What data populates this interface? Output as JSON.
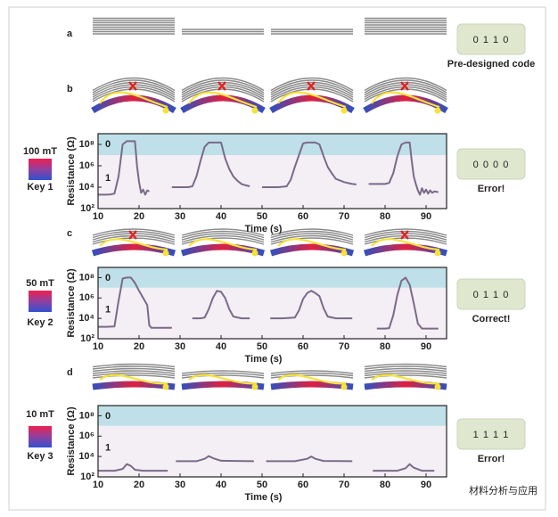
{
  "panel_labels": [
    "a",
    "b",
    "c",
    "d"
  ],
  "keys": [
    {
      "field": "100 mT",
      "name": "Key 1"
    },
    {
      "field": "50 mT",
      "name": "Key 2"
    },
    {
      "field": "10 mT",
      "name": "Key 3"
    }
  ],
  "codes": [
    {
      "code": "0 1 1 0",
      "caption": "Pre-designed code",
      "color": "#8a8a8a",
      "caption_color": "#222222"
    },
    {
      "code": "0 0 0 0",
      "caption": "Error!",
      "color": "#8a8a8a",
      "caption_color": "#222222"
    },
    {
      "code": "0 1 1 0",
      "caption": "Correct!",
      "color": "#e03030",
      "caption_color": "#e03030"
    },
    {
      "code": "1 1 1 1",
      "caption": "Error!",
      "color": "#8a8a8a",
      "caption_color": "#222222"
    }
  ],
  "watermark": "材料分析与应用",
  "chart_data": [
    {
      "type": "line",
      "xlabel": "Time (s)",
      "ylabel": "Resistance (Ω)",
      "log_y": true,
      "color": "#7a6a8a",
      "state_labels": [
        "0",
        "1"
      ],
      "state_threshold": 10000000,
      "state_colors": [
        "#bfe0e8",
        "#f4eff4"
      ],
      "xlim": [
        10,
        95
      ],
      "xticks": [
        10,
        20,
        30,
        40,
        50,
        60,
        70,
        80,
        90
      ],
      "ylim": [
        100,
        1000000000
      ],
      "yticks": [
        {
          "value": 100,
          "label": "10²"
        },
        {
          "value": 10000,
          "label": "10⁴"
        },
        {
          "value": 1000000,
          "label": "10⁶"
        },
        {
          "value": 100000000,
          "label": "10⁸"
        }
      ],
      "segments": [
        {
          "x": [
            10,
            11,
            12,
            13,
            14,
            15,
            16,
            17,
            18,
            19,
            19.5,
            20,
            20.5,
            21,
            21.5,
            22,
            22.5
          ],
          "values": [
            2000,
            2000,
            2000,
            2100,
            2500,
            100000,
            100000000,
            200000000,
            200000000,
            200000000,
            1000000,
            30000,
            3000,
            6000,
            2000,
            5000,
            4000
          ]
        },
        {
          "x": [
            28,
            30,
            32,
            33,
            34,
            35,
            36,
            37,
            38,
            39,
            40,
            41,
            42,
            43,
            44,
            45,
            46,
            47
          ],
          "values": [
            10000,
            10000,
            10000,
            12000,
            100000,
            3000000,
            60000000,
            150000000,
            150000000,
            150000000,
            150000000,
            5000000,
            500000,
            100000,
            40000,
            20000,
            15000,
            12000
          ]
        },
        {
          "x": [
            50,
            52,
            54,
            56,
            57,
            58,
            59,
            60,
            61,
            62,
            63,
            64,
            65,
            66,
            67,
            68,
            70,
            72,
            73
          ],
          "values": [
            10000,
            10000,
            10000,
            12000,
            50000,
            800000,
            10000000,
            120000000,
            150000000,
            150000000,
            150000000,
            100000000,
            8000000,
            800000,
            200000,
            60000,
            30000,
            20000,
            18000
          ]
        },
        {
          "x": [
            76,
            78,
            80,
            81,
            82,
            83,
            84,
            85,
            86,
            86.5,
            87,
            87.5,
            88,
            88.5,
            89,
            89.5,
            90,
            90.5,
            91,
            91.5,
            92,
            93
          ],
          "values": [
            20000,
            20000,
            20000,
            25000,
            200000,
            8000000,
            100000000,
            150000000,
            150000000,
            3000000,
            100000,
            20000,
            5000,
            2000,
            8000,
            3000,
            6000,
            2500,
            5000,
            3000,
            4000,
            3500
          ]
        }
      ]
    },
    {
      "type": "line",
      "xlabel": "Time (s)",
      "ylabel": "Resistance (Ω)",
      "log_y": true,
      "color": "#7a6a8a",
      "state_labels": [
        "0",
        "1"
      ],
      "state_threshold": 10000000,
      "state_colors": [
        "#bfe0e8",
        "#f4eff4"
      ],
      "xlim": [
        10,
        95
      ],
      "xticks": [
        10,
        20,
        30,
        40,
        50,
        60,
        70,
        80,
        90
      ],
      "ylim": [
        100,
        1000000000
      ],
      "yticks": [
        {
          "value": 100,
          "label": "10²"
        },
        {
          "value": 10000,
          "label": "10⁴"
        },
        {
          "value": 1000000,
          "label": "10⁶"
        },
        {
          "value": 100000000,
          "label": "10⁸"
        }
      ],
      "segments": [
        {
          "x": [
            10,
            12,
            14,
            15,
            16,
            17,
            18,
            19,
            20,
            21,
            22,
            22.5,
            23,
            25,
            28
          ],
          "values": [
            1500,
            1500,
            1600,
            500000,
            80000000,
            100000000,
            100000000,
            30000000,
            5000000,
            1000000,
            200000,
            2000,
            1200,
            1200,
            1200
          ]
        },
        {
          "x": [
            33,
            35,
            36,
            37,
            38,
            39,
            40,
            41,
            42,
            43,
            45,
            47
          ],
          "values": [
            10000,
            10000,
            12000,
            80000,
            1000000,
            5000000,
            4000000,
            1000000,
            80000,
            15000,
            10000,
            10000
          ]
        },
        {
          "x": [
            52,
            55,
            58,
            59,
            60,
            61,
            62,
            63,
            64,
            65,
            66,
            68,
            72
          ],
          "values": [
            10000,
            10000,
            12000,
            60000,
            800000,
            3000000,
            5000000,
            3000000,
            1500000,
            100000,
            15000,
            10000,
            10000
          ]
        },
        {
          "x": [
            78,
            80,
            81,
            82,
            83,
            84,
            85,
            86,
            87,
            88,
            89,
            91,
            93
          ],
          "values": [
            1000,
            1000,
            1100,
            20000,
            2000000,
            50000000,
            100000000,
            20000000,
            300000,
            3000,
            1000,
            1000,
            1000
          ]
        }
      ]
    },
    {
      "type": "line",
      "xlabel": "Time (s)",
      "ylabel": "Resistance (Ω)",
      "log_y": true,
      "color": "#7a6a8a",
      "state_labels": [
        "0",
        "1"
      ],
      "state_threshold": 10000000,
      "state_colors": [
        "#bfe0e8",
        "#f4eff4"
      ],
      "xlim": [
        10,
        95
      ],
      "xticks": [
        10,
        20,
        30,
        40,
        50,
        60,
        70,
        80,
        90
      ],
      "ylim": [
        100,
        1000000000
      ],
      "yticks": [
        {
          "value": 100,
          "label": "10²"
        },
        {
          "value": 10000,
          "label": "10⁴"
        },
        {
          "value": 1000000,
          "label": "10⁶"
        },
        {
          "value": 100000000,
          "label": "10⁸"
        }
      ],
      "segments": [
        {
          "x": [
            10,
            14,
            16,
            17,
            18,
            19,
            21,
            27
          ],
          "values": [
            400,
            400,
            600,
            1800,
            1200,
            500,
            400,
            400
          ]
        },
        {
          "x": [
            29,
            34,
            36,
            37,
            38,
            40,
            48
          ],
          "values": [
            3500,
            3500,
            6000,
            11000,
            7000,
            3800,
            3500
          ]
        },
        {
          "x": [
            51,
            58,
            61,
            62,
            63,
            65,
            72
          ],
          "values": [
            3500,
            3500,
            6000,
            10000,
            6000,
            3700,
            3500
          ]
        },
        {
          "x": [
            77,
            83,
            85,
            86,
            87,
            89,
            92
          ],
          "values": [
            400,
            400,
            700,
            1800,
            800,
            400,
            400
          ]
        }
      ]
    }
  ]
}
